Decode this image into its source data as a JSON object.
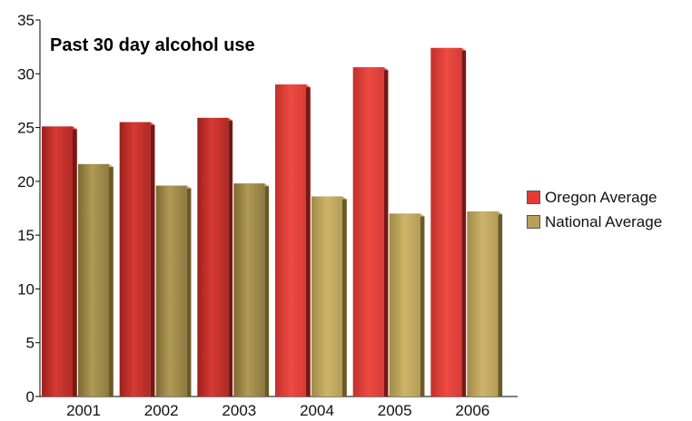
{
  "chart_data": {
    "type": "bar",
    "title": "Past 30 day alcohol use",
    "xlabel": "",
    "ylabel": "",
    "categories": [
      "2001",
      "2002",
      "2003",
      "2004",
      "2005",
      "2006"
    ],
    "series": [
      {
        "name": "Oregon Average",
        "values": [
          25.1,
          25.5,
          25.9,
          29.0,
          30.6,
          32.4
        ],
        "color": "#c8322e"
      },
      {
        "name": "National Average",
        "values": [
          21.6,
          19.6,
          19.8,
          18.6,
          17.0,
          17.2
        ],
        "color": "#a08a48"
      }
    ],
    "ylim": [
      0,
      35
    ],
    "yticks": [
      0,
      5,
      10,
      15,
      20,
      25,
      30,
      35
    ],
    "legend_position": "right",
    "grid": false,
    "style": "3d"
  }
}
